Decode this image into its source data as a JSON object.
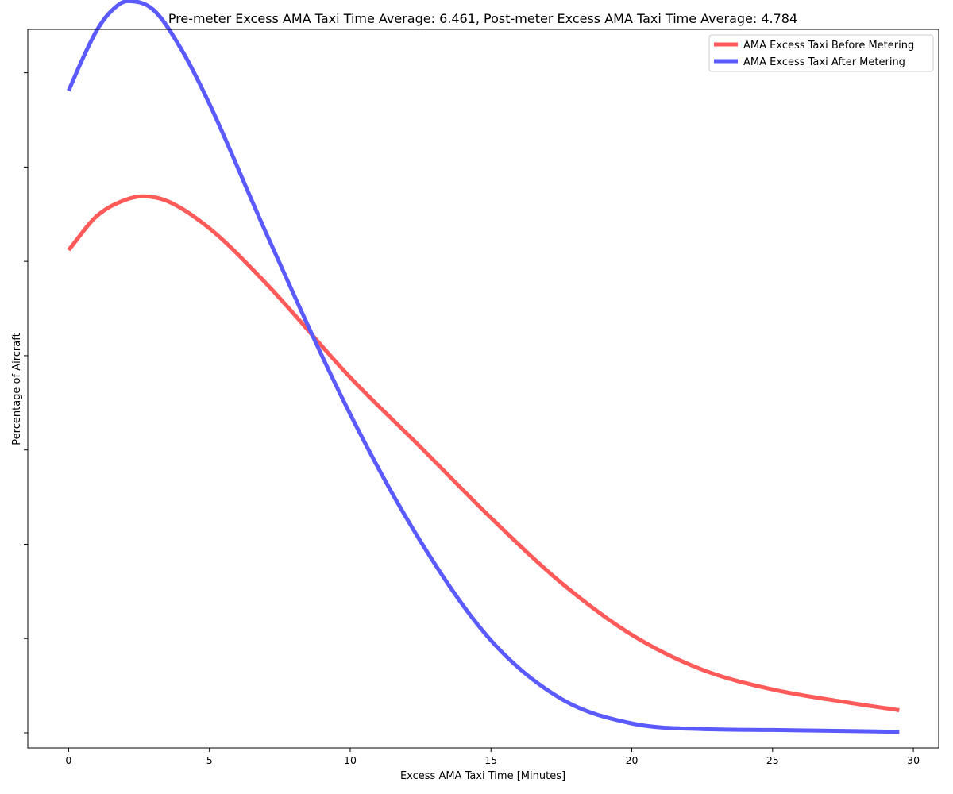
{
  "chart_data": {
    "type": "line",
    "title": "Pre-meter Excess AMA Taxi Time Average: 6.461, Post-meter Excess AMA Taxi Time Average: 4.784",
    "xlabel": "Excess AMA Taxi Time [Minutes]",
    "ylabel": "Percentage of Aircraft",
    "xlim": [
      -1.45,
      30.9
    ],
    "ylim": [
      -0.0016,
      0.0746
    ],
    "x_ticks": [
      0,
      5,
      10,
      15,
      20,
      25,
      30
    ],
    "y_ticks": [
      0.0,
      0.01,
      0.02,
      0.03,
      0.04,
      0.05,
      0.06,
      0.07
    ],
    "y_tick_labels_shown": false,
    "grid": false,
    "legend_position": "top-right",
    "series": [
      {
        "name": "AMA Excess Taxi Before Metering",
        "color": "#ff5a5a",
        "x": [
          0,
          1,
          2,
          2.65,
          3.5,
          5,
          7,
          10,
          12.5,
          15,
          17.5,
          20,
          22.5,
          25,
          27.5,
          29.5
        ],
        "y": [
          0.0512,
          0.0548,
          0.0565,
          0.0569,
          0.0564,
          0.0535,
          0.0477,
          0.0377,
          0.0303,
          0.0228,
          0.0159,
          0.0104,
          0.0067,
          0.0046,
          0.0033,
          0.0024
        ]
      },
      {
        "name": "AMA Excess Taxi After Metering",
        "color": "#5a5aff",
        "x": [
          0,
          0.5,
          1,
          1.5,
          2.1,
          3,
          4,
          5,
          7,
          10,
          12.5,
          15,
          17.5,
          20,
          22.5,
          25,
          27.5,
          29.5
        ],
        "y": [
          0.0681,
          0.0715,
          0.0745,
          0.0765,
          0.0776,
          0.0767,
          0.0725,
          0.0667,
          0.0531,
          0.0338,
          0.0203,
          0.0098,
          0.0036,
          0.001,
          0.0004,
          0.0003,
          0.0002,
          0.0001
        ]
      }
    ]
  }
}
